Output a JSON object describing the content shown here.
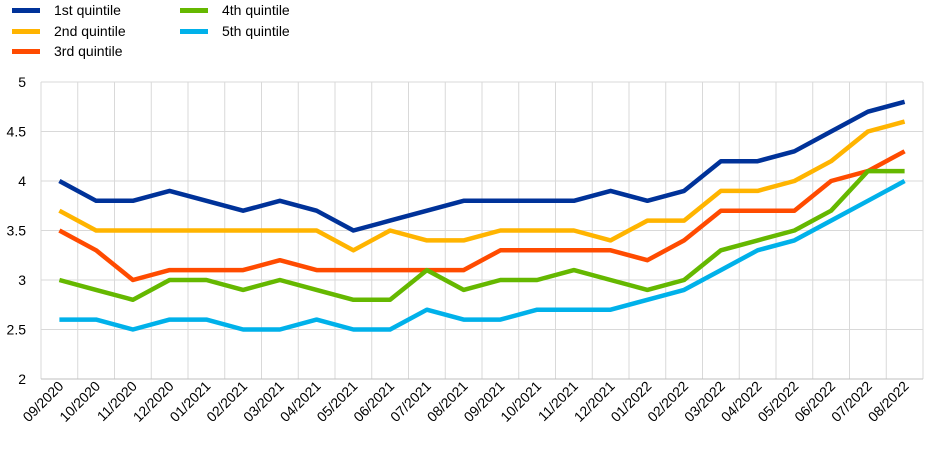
{
  "chart_data": {
    "type": "line",
    "categories": [
      "09/2020",
      "10/2020",
      "11/2020",
      "12/2020",
      "01/2021",
      "02/2021",
      "03/2021",
      "04/2021",
      "05/2021",
      "06/2021",
      "07/2021",
      "08/2021",
      "09/2021",
      "10/2021",
      "11/2021",
      "12/2021",
      "01/2022",
      "02/2022",
      "03/2022",
      "04/2022",
      "05/2022",
      "06/2022",
      "07/2022",
      "08/2022"
    ],
    "ylim": [
      2,
      5
    ],
    "yticks": [
      "2",
      "2.5",
      "3",
      "3.5",
      "4",
      "4.5",
      "5"
    ],
    "grid": true,
    "legend_position": "top-left",
    "series": [
      {
        "name": "1st quintile",
        "color": "#003299",
        "values": [
          4.0,
          3.8,
          3.8,
          3.9,
          3.8,
          3.7,
          3.8,
          3.7,
          3.5,
          3.6,
          3.7,
          3.8,
          3.8,
          3.8,
          3.8,
          3.9,
          3.8,
          3.9,
          4.2,
          4.2,
          4.3,
          4.5,
          4.7,
          4.8
        ]
      },
      {
        "name": "2nd quintile",
        "color": "#FFB400",
        "values": [
          3.7,
          3.5,
          3.5,
          3.5,
          3.5,
          3.5,
          3.5,
          3.5,
          3.3,
          3.5,
          3.4,
          3.4,
          3.5,
          3.5,
          3.5,
          3.4,
          3.6,
          3.6,
          3.9,
          3.9,
          4.0,
          4.2,
          4.5,
          4.6
        ]
      },
      {
        "name": "3rd quintile",
        "color": "#FF4B00",
        "values": [
          3.5,
          3.3,
          3.0,
          3.1,
          3.1,
          3.1,
          3.2,
          3.1,
          3.1,
          3.1,
          3.1,
          3.1,
          3.3,
          3.3,
          3.3,
          3.3,
          3.2,
          3.4,
          3.7,
          3.7,
          3.7,
          4.0,
          4.1,
          4.3
        ]
      },
      {
        "name": "4th quintile",
        "color": "#65B800",
        "values": [
          3.0,
          2.9,
          2.8,
          3.0,
          3.0,
          2.9,
          3.0,
          2.9,
          2.8,
          2.8,
          3.1,
          2.9,
          3.0,
          3.0,
          3.1,
          3.0,
          2.9,
          3.0,
          3.3,
          3.4,
          3.5,
          3.7,
          4.1,
          4.1
        ]
      },
      {
        "name": "5th quintile",
        "color": "#00B1EA",
        "values": [
          2.6,
          2.6,
          2.5,
          2.6,
          2.6,
          2.5,
          2.5,
          2.6,
          2.5,
          2.5,
          2.7,
          2.6,
          2.6,
          2.7,
          2.7,
          2.7,
          2.8,
          2.9,
          3.1,
          3.3,
          3.4,
          3.6,
          3.8,
          4.0
        ]
      }
    ]
  }
}
